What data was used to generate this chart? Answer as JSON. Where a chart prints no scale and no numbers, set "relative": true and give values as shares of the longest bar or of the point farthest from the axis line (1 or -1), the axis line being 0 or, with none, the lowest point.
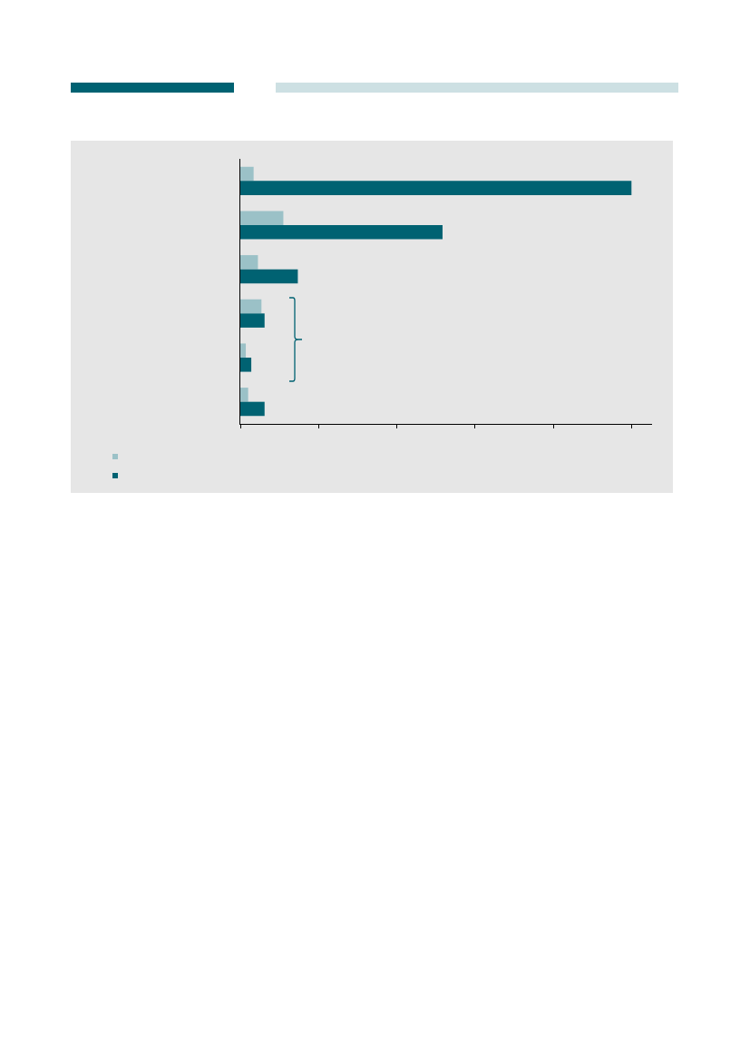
{
  "chart_data": {
    "type": "bar",
    "orientation": "horizontal",
    "relative": true,
    "categories": [
      null,
      null,
      null,
      null,
      null,
      null
    ],
    "series": [
      {
        "color": "#9bc1c7",
        "values": [
          0.034,
          0.11,
          0.045,
          0.054,
          0.014,
          0.02
        ]
      },
      {
        "color": "#006272",
        "values": [
          1,
          0.517,
          0.147,
          0.062,
          0.028,
          0.062
        ]
      }
    ],
    "grid": false
  }
}
